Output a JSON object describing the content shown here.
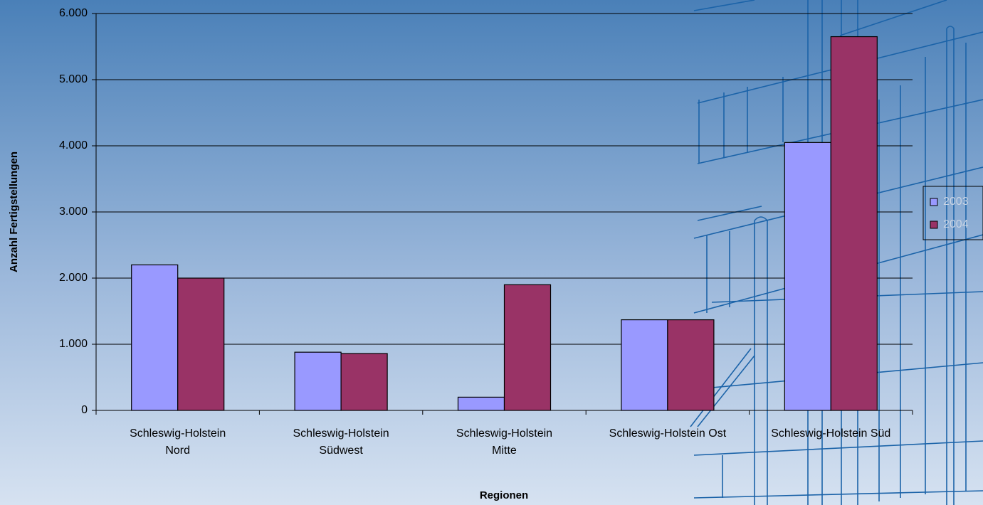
{
  "chart_data": {
    "type": "bar",
    "x_label": "Regionen",
    "y_label": "Anzahl Fertigstellungen",
    "categories": [
      "Schleswig-Holstein Nord",
      "Schleswig-Holstein Südwest",
      "Schleswig-Holstein Mitte",
      "Schleswig-Holstein Ost",
      "Schleswig-Holstein Süd"
    ],
    "series": [
      {
        "name": "2003",
        "color": "#9999ff",
        "values": [
          2200,
          880,
          200,
          1370,
          4050
        ]
      },
      {
        "name": "2004",
        "color": "#993366",
        "values": [
          2000,
          860,
          1900,
          1370,
          5650
        ]
      }
    ],
    "ylim": [
      0,
      6000
    ],
    "yticks": [
      0,
      {
        "value": 1000,
        "label": "1.000"
      },
      {
        "value": 2000,
        "label": "2.000"
      },
      {
        "value": 3000,
        "label": "3.000"
      },
      {
        "value": 4000,
        "label": "4.000"
      },
      {
        "value": 5000,
        "label": "5.000"
      },
      {
        "value": 6000,
        "label": "6.000"
      }
    ],
    "grid": true,
    "legend": "right"
  }
}
